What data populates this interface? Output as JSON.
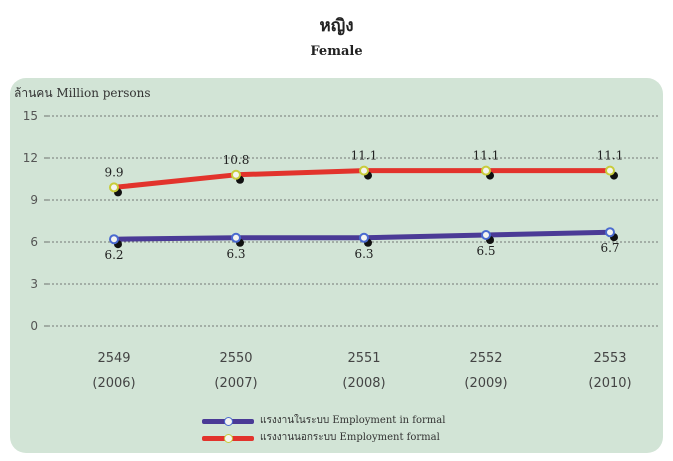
{
  "header": {
    "title_th": "หญิง",
    "title_en": "Female"
  },
  "chart_data": {
    "type": "line",
    "title": "หญิง Female",
    "ylabel": "ล้านคน Million persons",
    "ylim": [
      0,
      15
    ],
    "yticks": [
      0,
      3,
      6,
      9,
      12,
      15
    ],
    "grid": true,
    "legend_position": "bottom",
    "categories": [
      {
        "year": "2549",
        "ce": "(2006)"
      },
      {
        "year": "2550",
        "ce": "(2007)"
      },
      {
        "year": "2551",
        "ce": "(2008)"
      },
      {
        "year": "2552",
        "ce": "(2009)"
      },
      {
        "year": "2553",
        "ce": "(2010)"
      }
    ],
    "series": [
      {
        "name": "แรงงานในระบบ Employment in formal",
        "name_th": "แรงงานในระบบ",
        "name_en": "Employment in formal",
        "color": "#4a3a96",
        "marker_color": "#4a6ad0",
        "values": [
          6.2,
          6.3,
          6.3,
          6.5,
          6.7
        ],
        "labels": [
          "6.2",
          "6.3",
          "6.3",
          "6.5",
          "6.7"
        ]
      },
      {
        "name": "แรงงานนอกระบบ Employment formal",
        "name_th": "แรงงานนอกระบบ",
        "name_en": "Employment formal",
        "color": "#e2332c",
        "marker_color": "#c8cc3a",
        "values": [
          9.9,
          10.8,
          11.1,
          11.1,
          11.1
        ],
        "labels": [
          "9.9",
          "10.8",
          "11.1",
          "11.1",
          "11.1"
        ]
      }
    ]
  }
}
